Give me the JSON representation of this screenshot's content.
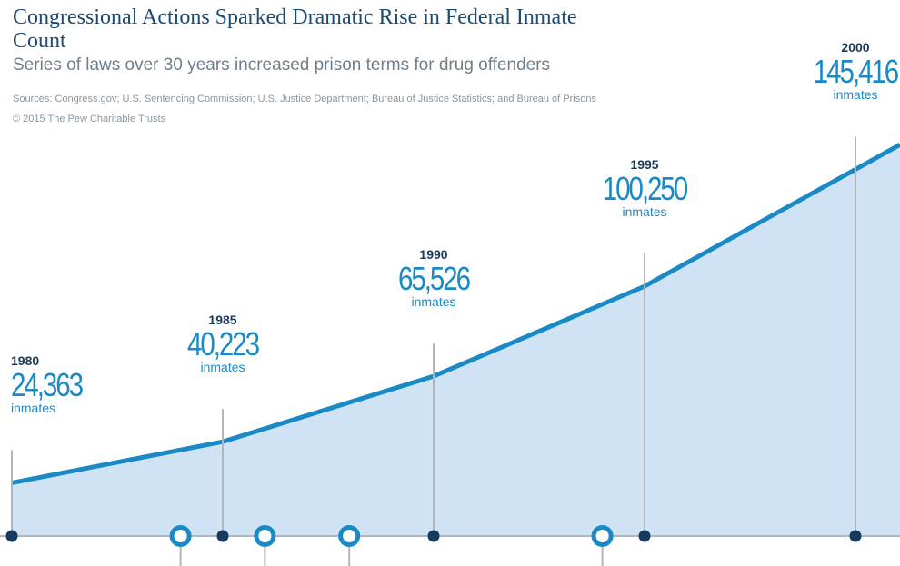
{
  "header": {
    "title": "Congressional Actions Sparked Dramatic Rise in Federal Inmate Count",
    "subtitle": "Series of laws over 30 years increased prison terms for drug offenders",
    "sources": "Sources: Congress.gov; U.S. Sentencing Commission; U.S. Justice Department; Bureau of Justice Statistics; and Bureau of Prisons",
    "copyright": "© 2015 The Pew Charitable Trusts"
  },
  "chart_data": {
    "type": "area",
    "title": "Congressional Actions Sparked Dramatic Rise in Federal Inmate Count",
    "subtitle": "Series of laws over 30 years increased prison terms for drug offenders",
    "x": [
      1980,
      1985,
      1990,
      1995,
      2000
    ],
    "series": [
      {
        "values": [
          24363,
          40223,
          65526,
          100250,
          145416
        ],
        "labels": [
          "24,363",
          "40,223",
          "65,526",
          "100,250",
          "145,416"
        ]
      }
    ],
    "unit_label": "inmates",
    "year_labels": [
      "1980",
      "1985",
      "1990",
      "1995",
      "2000"
    ],
    "law_markers_years": [
      1984,
      1986,
      1988,
      1994
    ],
    "colors": {
      "line": "#1a8ac6",
      "fill": "#cfe3f4",
      "axis": "#b0b6bb",
      "dot": "#173b5e",
      "text_value": "#1a8ac6",
      "text_year": "#1b3a57"
    }
  }
}
